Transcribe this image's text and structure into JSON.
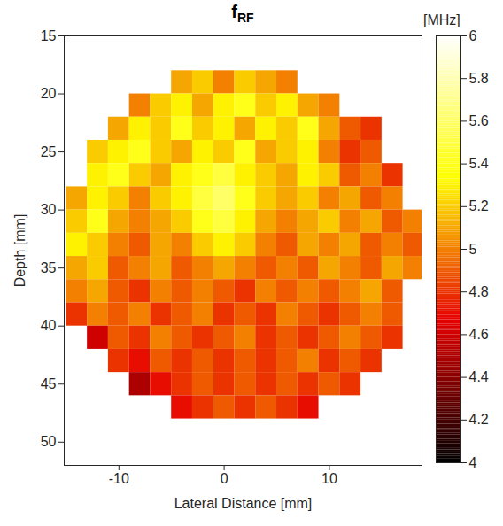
{
  "chart_data": {
    "type": "heatmap",
    "title": {
      "text": "f",
      "subscript": "RF"
    },
    "x_label": "Lateral Distance [mm]",
    "y_label": "Depth [mm]",
    "xlim": [
      -15.2,
      18.8
    ],
    "xticks": [
      -10,
      0,
      10
    ],
    "ylim": [
      52,
      15
    ],
    "yticks": [
      15,
      20,
      25,
      30,
      35,
      40,
      45,
      50
    ],
    "x": [
      -14,
      -12,
      -10,
      -8,
      -6,
      -4,
      -2,
      0,
      2,
      4,
      6,
      8,
      10,
      12,
      14,
      16,
      18
    ],
    "y": [
      19,
      21,
      23,
      25,
      27,
      29,
      31,
      33,
      35,
      37,
      39,
      41,
      43,
      45,
      47
    ],
    "values": [
      [
        null,
        null,
        null,
        null,
        null,
        5.1,
        5.2,
        5.0,
        5.2,
        5.1,
        5.0,
        null,
        null,
        null,
        null,
        null,
        null
      ],
      [
        null,
        null,
        null,
        5.0,
        5.2,
        5.3,
        5.1,
        5.3,
        5.4,
        5.2,
        5.3,
        5.1,
        5.0,
        null,
        null,
        null,
        null
      ],
      [
        null,
        null,
        5.1,
        5.3,
        5.2,
        5.4,
        5.2,
        5.3,
        5.1,
        5.3,
        5.2,
        5.4,
        5.1,
        4.9,
        4.8,
        null,
        null
      ],
      [
        null,
        5.2,
        5.3,
        5.4,
        5.2,
        5.1,
        5.3,
        5.2,
        5.4,
        5.1,
        5.2,
        5.3,
        5.0,
        4.8,
        4.9,
        null,
        null
      ],
      [
        null,
        5.3,
        5.4,
        5.2,
        5.1,
        5.3,
        5.4,
        5.5,
        5.3,
        5.2,
        5.1,
        5.3,
        5.2,
        4.9,
        5.0,
        4.8,
        null
      ],
      [
        5.1,
        5.3,
        5.2,
        5.0,
        5.2,
        5.3,
        5.5,
        5.6,
        5.4,
        5.2,
        5.1,
        5.2,
        5.0,
        5.1,
        4.9,
        5.0,
        null
      ],
      [
        5.2,
        5.4,
        5.1,
        5.0,
        5.1,
        5.2,
        5.4,
        5.5,
        5.3,
        5.1,
        5.0,
        5.1,
        5.2,
        5.0,
        5.1,
        4.9,
        5.0
      ],
      [
        5.3,
        5.2,
        5.0,
        4.9,
        5.1,
        5.0,
        5.2,
        5.3,
        5.2,
        5.0,
        4.9,
        5.1,
        5.0,
        5.1,
        4.9,
        5.0,
        4.9
      ],
      [
        5.1,
        5.2,
        4.9,
        5.0,
        5.1,
        4.9,
        5.0,
        5.1,
        5.0,
        4.9,
        5.0,
        4.9,
        5.1,
        5.0,
        4.9,
        5.1,
        5.0
      ],
      [
        5.0,
        5.1,
        4.9,
        4.8,
        5.0,
        4.9,
        5.0,
        4.9,
        4.8,
        5.0,
        4.9,
        5.0,
        4.9,
        5.0,
        5.1,
        4.9,
        null
      ],
      [
        4.8,
        5.0,
        4.9,
        5.0,
        4.8,
        4.9,
        5.0,
        4.8,
        4.9,
        4.8,
        5.0,
        4.9,
        4.8,
        4.9,
        5.0,
        4.9,
        null
      ],
      [
        null,
        4.6,
        4.9,
        4.8,
        5.0,
        4.9,
        4.8,
        4.9,
        5.0,
        4.8,
        4.9,
        4.8,
        4.9,
        5.0,
        4.9,
        4.8,
        null
      ],
      [
        null,
        null,
        4.8,
        4.7,
        4.9,
        4.8,
        4.9,
        4.8,
        4.9,
        4.8,
        4.9,
        5.0,
        4.8,
        4.9,
        4.8,
        null,
        null
      ],
      [
        null,
        null,
        null,
        4.5,
        4.7,
        4.8,
        4.9,
        4.8,
        4.9,
        4.8,
        4.9,
        4.8,
        4.9,
        4.8,
        null,
        null,
        null
      ],
      [
        null,
        null,
        null,
        null,
        null,
        4.7,
        4.8,
        4.9,
        4.8,
        4.9,
        4.8,
        4.7,
        null,
        null,
        null,
        null,
        null
      ]
    ],
    "colorbar": {
      "range": [
        4,
        6
      ],
      "ticks": [
        4,
        4.2,
        4.4,
        4.6,
        4.8,
        5,
        5.2,
        5.4,
        5.6,
        5.8,
        6
      ],
      "label": "[MHz]"
    }
  }
}
